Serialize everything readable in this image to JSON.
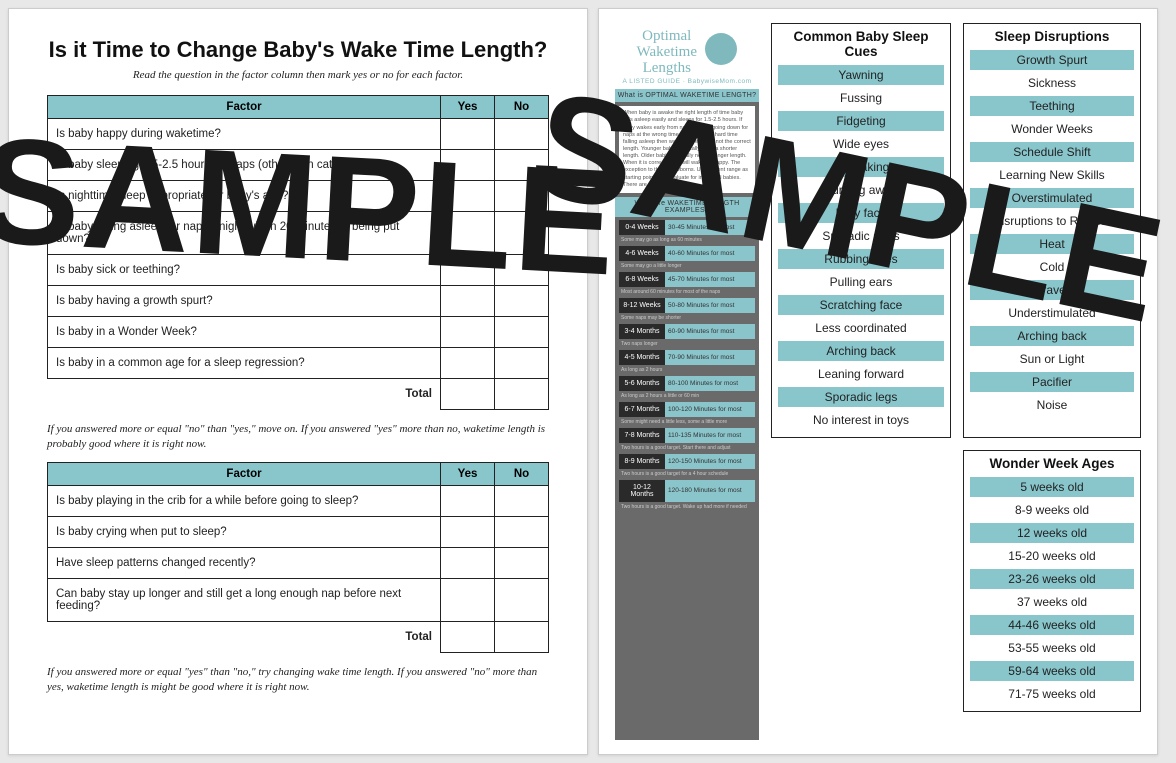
{
  "watermark": "SAMPLE",
  "colors": {
    "background": "#e8e8e8",
    "page_bg": "#ffffff",
    "accent_teal": "#88c6cc",
    "border": "#222222",
    "text": "#222222",
    "infographic_bg": "#6a6a6a",
    "infographic_dark": "#2a2a2a"
  },
  "typography": {
    "title_fontsize": 22,
    "body_fontsize": 11.5,
    "note_fontsize": 11,
    "list_title_fontsize": 13.5,
    "list_row_fontsize": 12,
    "title_font": "Verdana",
    "body_font": "Verdana",
    "note_font_style": "italic"
  },
  "left_page": {
    "title": "Is it Time to Change Baby's Wake Time Length?",
    "subtitle": "Read the question in the factor column then mark yes or no for each factor.",
    "table1": {
      "headers": {
        "factor": "Factor",
        "yes": "Yes",
        "no": "No"
      },
      "col_widths": {
        "factor": "auto",
        "yes": 54,
        "no": 54
      },
      "rows": [
        "Is baby happy during waketime?",
        "Is baby sleeping 1.5-2.5 hours for naps (other than catnap)?",
        "Is nighttime sleep appropriate for baby's age?",
        "Is baby falling asleep for nap or night within 20 minutes of being put down?",
        "Is baby sick or teething?",
        "Is baby having a growth spurt?",
        "Is baby in a Wonder Week?",
        "Is baby in a common age for a sleep regression?"
      ],
      "total_label": "Total"
    },
    "note1": "If you answered more or equal \"no\" than \"yes,\" move on. If you answered \"yes\" more than no, waketime length is probably good where it is right now.",
    "table2": {
      "headers": {
        "factor": "Factor",
        "yes": "Yes",
        "no": "No"
      },
      "rows": [
        "Is baby playing in the crib for a while before going to sleep?",
        "Is baby crying when put to sleep?",
        "Have sleep patterns changed recently?",
        "Can baby stay up longer and still get a long enough nap before next feeding?"
      ],
      "total_label": "Total"
    },
    "note2": "If you answered more or equal \"yes\" than \"no,\" try changing wake time length. If you answered \"no\" more than yes, waketime length is might be good where it is right now."
  },
  "right_page": {
    "infographic": {
      "title_line1": "Optimal",
      "title_line2": "Waketime",
      "title_line3": "Lengths",
      "tagline": "A LISTED GUIDE · BabywiseMom.com",
      "section1_label": "What is OPTIMAL WAKETIME LENGTH?",
      "blurb": "When baby is awake the right length of time baby falls asleep easily and sleeps for 1.5-2.5 hours. If baby wakes early from naps baby is going down for naps at the wrong time. If baby has a hard time falling asleep then waketime length is not the correct length. Younger babies typically need a shorter length. Older babies typically need a longer length. When it is correct, baby will wake up happy. The exception to this is newborns. Use current range as starting point then evaluate for individual babies. There are always outliers.",
      "section2_label": "What are WAKETIME LENGTH EXAMPLES?",
      "waketimes": [
        {
          "age": "0-4 Weeks",
          "duration": "30-45 Minutes for most",
          "subnote": "Some may go as long as 60 minutes"
        },
        {
          "age": "4-6 Weeks",
          "duration": "40-60 Minutes for most",
          "subnote": "Some may go a little longer"
        },
        {
          "age": "6-8 Weeks",
          "duration": "45-70 Minutes for most",
          "subnote": "Most around 60 minutes for most of the naps"
        },
        {
          "age": "8-12 Weeks",
          "duration": "50-80 Minutes for most",
          "subnote": "Some naps may be shorter"
        },
        {
          "age": "3-4 Months",
          "duration": "60-90 Minutes for most",
          "subnote": "Two naps longer"
        },
        {
          "age": "4-5 Months",
          "duration": "70-90 Minutes for most",
          "subnote": "As long as 2 hours"
        },
        {
          "age": "5-6 Months",
          "duration": "80-100 Minutes for most",
          "subnote": "As long as 2 hours a little or 60 min"
        },
        {
          "age": "6-7 Months",
          "duration": "100-120 Minutes for most",
          "subnote": "Some might need a little less, some a little more"
        },
        {
          "age": "7-8 Months",
          "duration": "110-135 Minutes for most",
          "subnote": "Two hours is a good target. Start there and adjust"
        },
        {
          "age": "8-9 Months",
          "duration": "120-150 Minutes for most",
          "subnote": "Two hours is a good target for a 4 hour schedule"
        },
        {
          "age": "10-12 Months",
          "duration": "120-180 Minutes for most",
          "subnote": "Two hours is a good target. Wake up had more if needed"
        }
      ]
    },
    "sleep_cues": {
      "title": "Common Baby Sleep Cues",
      "items": [
        {
          "text": "Yawning",
          "hl": true
        },
        {
          "text": "Fussing",
          "hl": false
        },
        {
          "text": "Fidgeting",
          "hl": true
        },
        {
          "text": "Wide eyes",
          "hl": false
        },
        {
          "text": "Squeaking",
          "hl": true
        },
        {
          "text": "Turning away",
          "hl": false
        },
        {
          "text": "Bury face",
          "hl": true
        },
        {
          "text": "Sporadic arms",
          "hl": false
        },
        {
          "text": "Rubbing eyes",
          "hl": true
        },
        {
          "text": "Pulling ears",
          "hl": false
        },
        {
          "text": "Scratching face",
          "hl": true
        },
        {
          "text": "Less coordinated",
          "hl": false
        },
        {
          "text": "Arching back",
          "hl": true
        },
        {
          "text": "Leaning forward",
          "hl": false
        },
        {
          "text": "Sporadic legs",
          "hl": true
        },
        {
          "text": "No interest in toys",
          "hl": false
        }
      ]
    },
    "disruptions": {
      "title": "Sleep Disruptions",
      "items": [
        {
          "text": "Growth Spurt",
          "hl": true
        },
        {
          "text": "Sickness",
          "hl": false
        },
        {
          "text": "Teething",
          "hl": true
        },
        {
          "text": "Wonder Weeks",
          "hl": false
        },
        {
          "text": "Schedule Shift",
          "hl": true
        },
        {
          "text": "Learning New Skills",
          "hl": false
        },
        {
          "text": "Overstimulated",
          "hl": true
        },
        {
          "text": "Disruptions to Routine",
          "hl": false
        },
        {
          "text": "Heat",
          "hl": true
        },
        {
          "text": "Cold",
          "hl": false
        },
        {
          "text": "Travel",
          "hl": true
        },
        {
          "text": "Understimulated",
          "hl": false
        },
        {
          "text": "Arching back",
          "hl": true
        },
        {
          "text": "Sun or Light",
          "hl": false
        },
        {
          "text": "Pacifier",
          "hl": true
        },
        {
          "text": "Noise",
          "hl": false
        }
      ]
    },
    "wonder_weeks": {
      "title": "Wonder Week Ages",
      "items": [
        {
          "text": "5 weeks old",
          "hl": true
        },
        {
          "text": "8-9 weeks old",
          "hl": false
        },
        {
          "text": "12 weeks old",
          "hl": true
        },
        {
          "text": "15-20 weeks old",
          "hl": false
        },
        {
          "text": "23-26 weeks old",
          "hl": true
        },
        {
          "text": "37 weeks old",
          "hl": false
        },
        {
          "text": "44-46 weeks old",
          "hl": true
        },
        {
          "text": "53-55 weeks old",
          "hl": false
        },
        {
          "text": "59-64 weeks old",
          "hl": true
        },
        {
          "text": "71-75 weeks old",
          "hl": false
        }
      ]
    }
  }
}
